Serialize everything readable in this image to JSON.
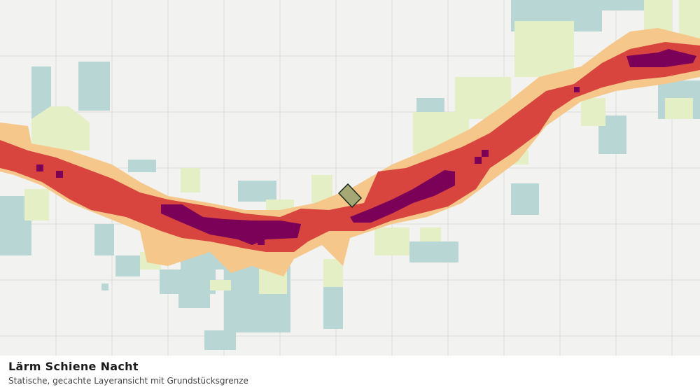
{
  "caption": {
    "title": "Lärm Schiene Nacht",
    "subtitle": "Statische, gecachte Layeransicht mit Grundstücksgrenze"
  }
}
